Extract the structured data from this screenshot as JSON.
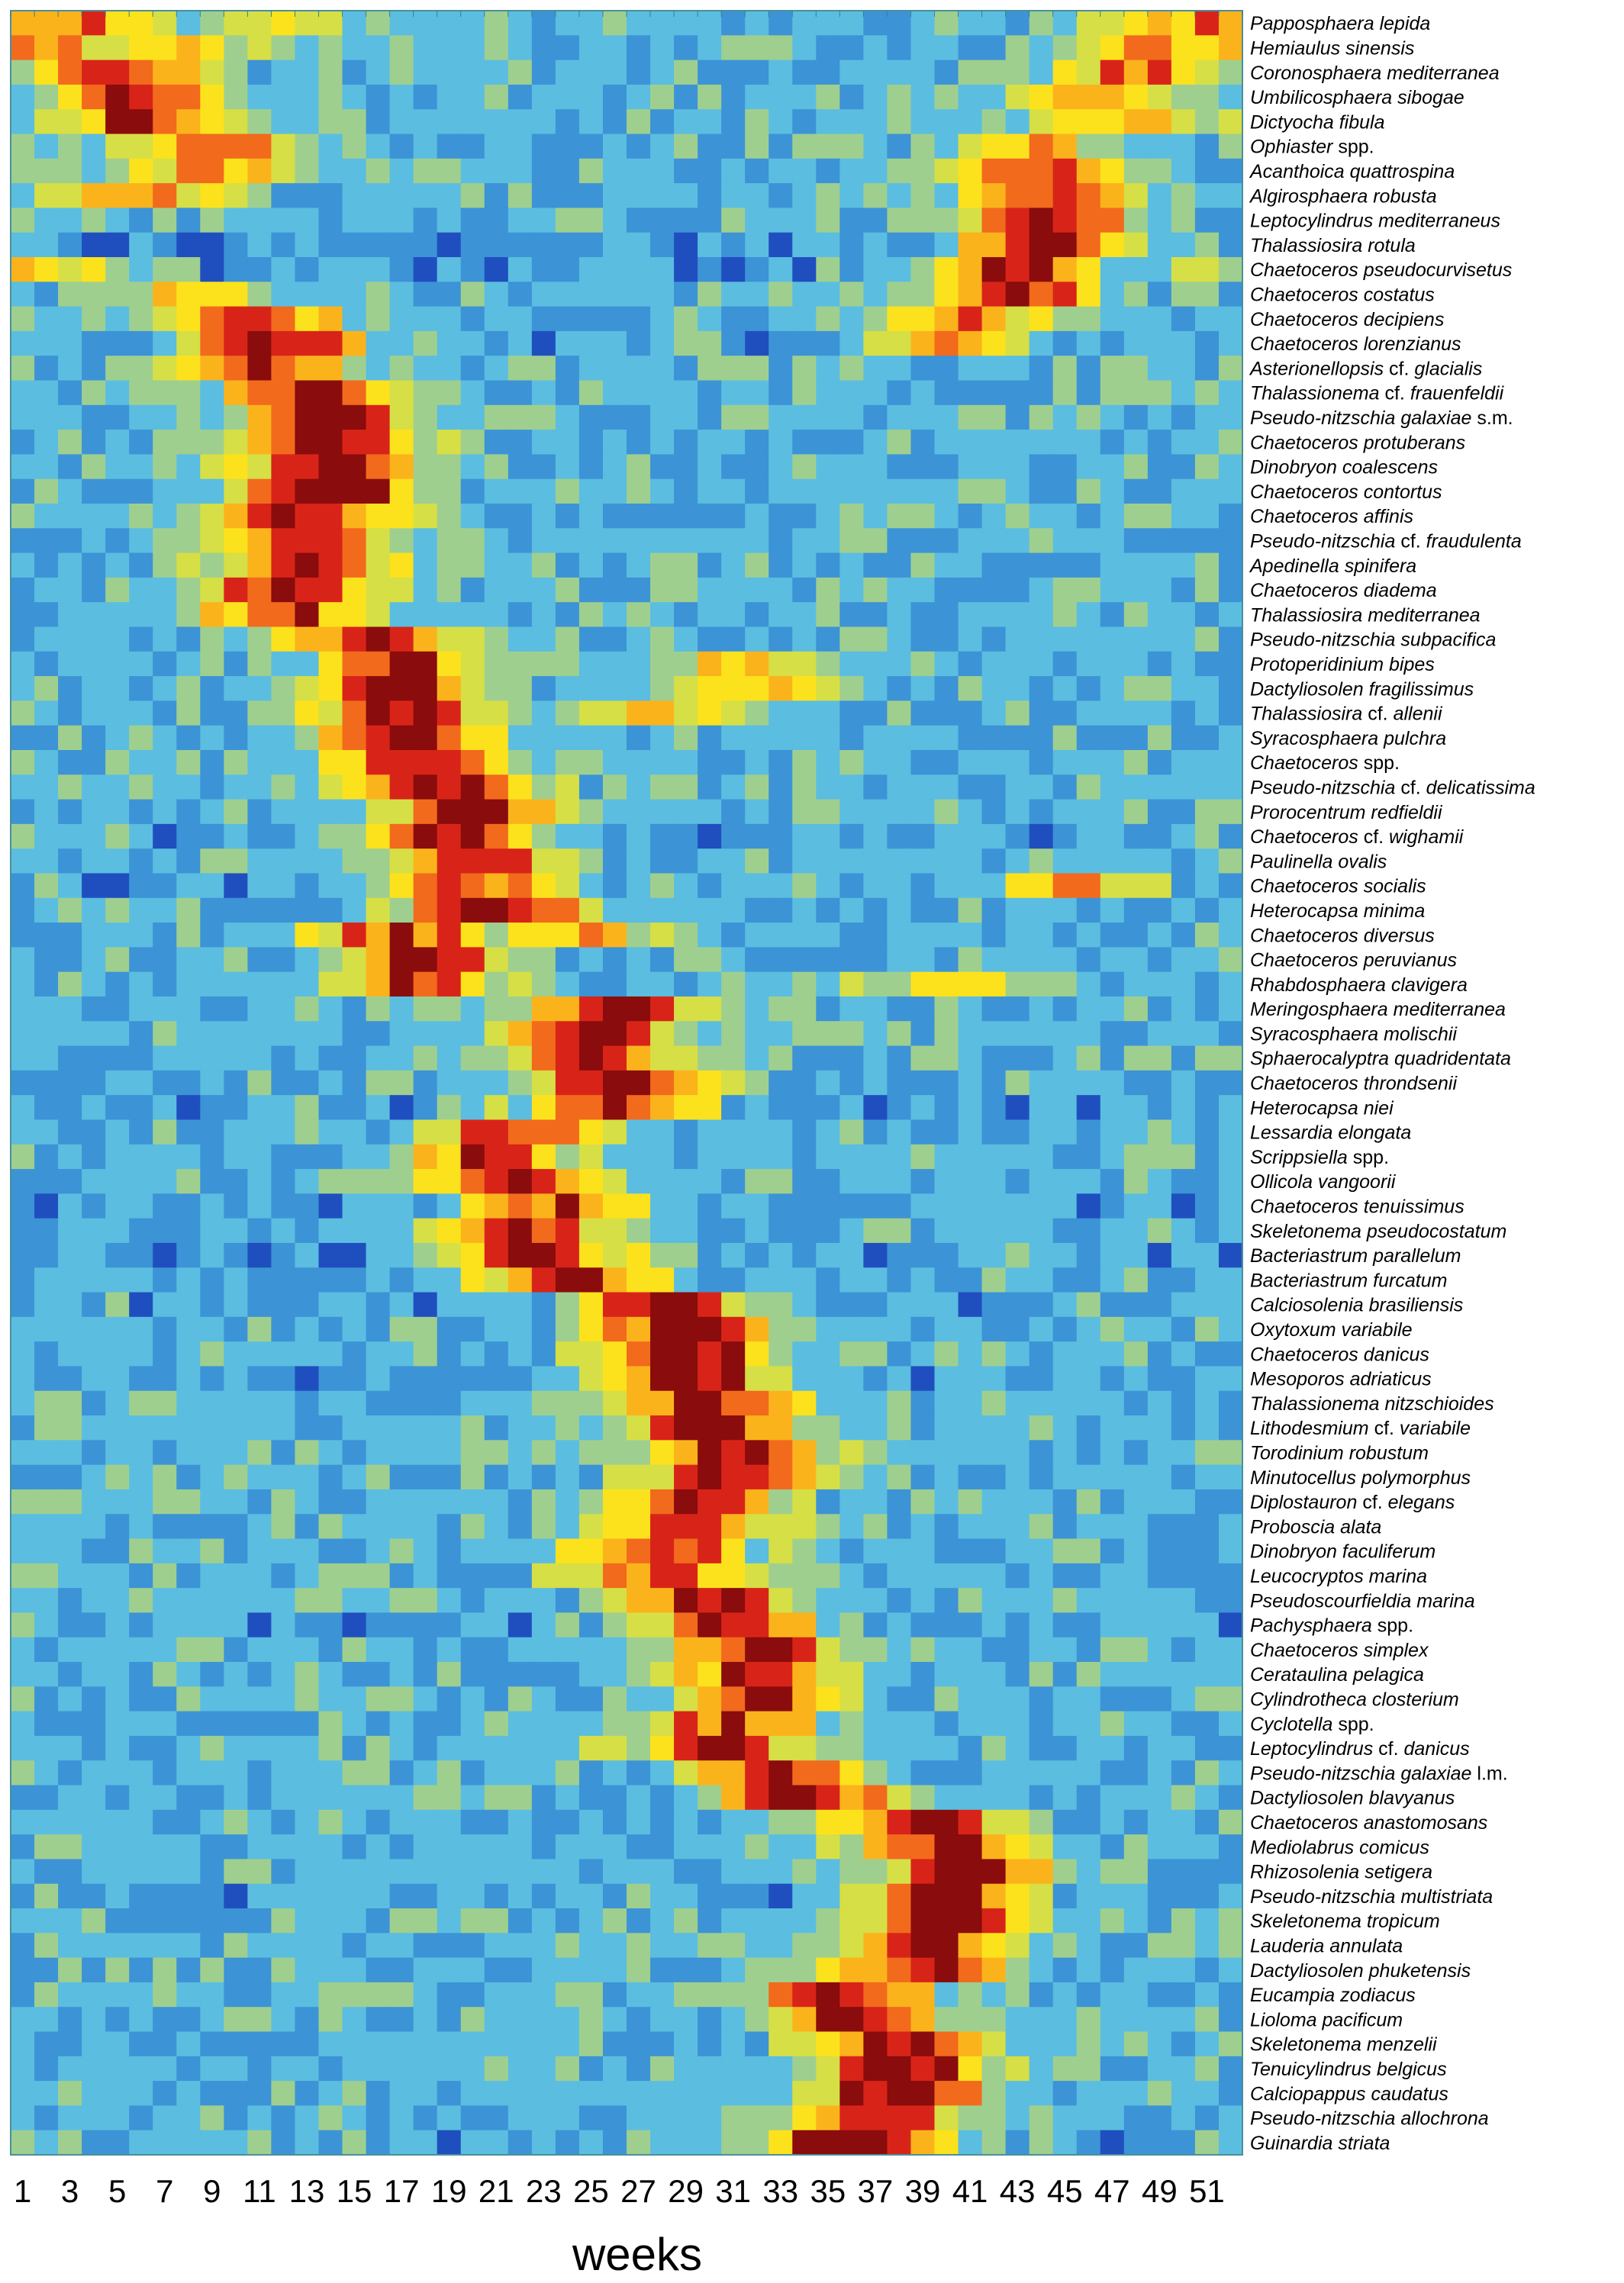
{
  "chart_data": {
    "type": "heatmap",
    "title": "",
    "xlabel": "weeks",
    "ylabel": "",
    "week_count": 52,
    "x_tick_labels": [
      "1",
      "3",
      "5",
      "7",
      "9",
      "11",
      "13",
      "15",
      "17",
      "19",
      "21",
      "23",
      "25",
      "27",
      "29",
      "31",
      "33",
      "35",
      "37",
      "39",
      "41",
      "43",
      "45",
      "47",
      "49",
      "51"
    ],
    "color_scale": [
      "#1f4fbf",
      "#3c93d6",
      "#5bbde0",
      "#9fcf8f",
      "#d6df45",
      "#fce21c",
      "#fbb31c",
      "#f26a1c",
      "#d82418",
      "#8a0c0c"
    ],
    "species": [
      {
        "genus": "Papposphaera",
        "epithet": "lepida",
        "peaks": [
          {
            "w": 3,
            "v": 3.5
          },
          {
            "w": 50,
            "v": 3.2
          },
          {
            "w": 12,
            "v": 2.0
          }
        ]
      },
      {
        "genus": "Hemiaulus",
        "epithet": "sinensis",
        "peaks": [
          {
            "w": 2,
            "v": 3.0
          },
          {
            "w": 49,
            "v": 3.0
          },
          {
            "w": 8,
            "v": 2.0
          }
        ]
      },
      {
        "genus": "Coronosphaera",
        "epithet": "mediterranea",
        "peaks": [
          {
            "w": 5,
            "v": 3.8
          },
          {
            "w": 48,
            "v": 3.3
          }
        ]
      },
      {
        "genus": "Umbilicosphaera",
        "epithet": "sibogae",
        "peaks": [
          {
            "w": 6,
            "v": 4.0
          },
          {
            "w": 46,
            "v": 3.3
          }
        ]
      },
      {
        "genus": "Dictyocha",
        "epithet": "fibula",
        "peaks": [
          {
            "w": 6,
            "v": 3.8
          },
          {
            "w": 48,
            "v": 3.0
          }
        ]
      },
      {
        "genus": "Ophiaster",
        "epithet": "",
        "suffix": "spp.",
        "peaks": [
          {
            "w": 9,
            "v": 3.6
          },
          {
            "w": 44,
            "v": 2.7
          }
        ]
      },
      {
        "genus": "Acanthoica",
        "epithet": "quattrospina",
        "peaks": [
          {
            "w": 9,
            "v": 3.2
          },
          {
            "w": 44,
            "v": 3.6
          }
        ]
      },
      {
        "genus": "Algirosphaera",
        "epithet": "robusta",
        "peaks": [
          {
            "w": 6,
            "v": 3.0
          },
          {
            "w": 44,
            "v": 3.8
          }
        ]
      },
      {
        "genus": "Leptocylindrus",
        "epithet": "mediterraneus",
        "peaks": [
          {
            "w": 44,
            "v": 4.6
          }
        ]
      },
      {
        "genus": "Thalassiosira",
        "epithet": "rotula",
        "peaks": [
          {
            "w": 44,
            "v": 4.5
          }
        ]
      },
      {
        "genus": "Chaetoceros",
        "epithet": "pseudocurvisetus",
        "peaks": [
          {
            "w": 43,
            "v": 4.4
          },
          {
            "w": 2,
            "v": 2.2
          }
        ]
      },
      {
        "genus": "Chaetoceros",
        "epithet": "costatus",
        "peaks": [
          {
            "w": 43,
            "v": 3.8
          },
          {
            "w": 8,
            "v": 2.4
          }
        ]
      },
      {
        "genus": "Chaetoceros",
        "epithet": "decipiens",
        "peaks": [
          {
            "w": 11,
            "v": 3.8
          },
          {
            "w": 41,
            "v": 3.2
          }
        ]
      },
      {
        "genus": "Chaetoceros",
        "epithet": "lorenzianus",
        "peaks": [
          {
            "w": 12,
            "v": 4.5
          },
          {
            "w": 40,
            "v": 2.6
          }
        ]
      },
      {
        "genus": "Asterionellopsis",
        "epithet": "glacialis",
        "qual": "cf.",
        "peaks": [
          {
            "w": 11,
            "v": 4.3
          }
        ]
      },
      {
        "genus": "Thalassionema",
        "epithet": "frauenfeldii",
        "qual": "cf.",
        "peaks": [
          {
            "w": 13,
            "v": 4.2
          }
        ]
      },
      {
        "genus": "Pseudo-nitzschia",
        "epithet": "galaxiae",
        "suffix": "s.m.",
        "peaks": [
          {
            "w": 14,
            "v": 4.6
          }
        ]
      },
      {
        "genus": "Chaetoceros",
        "epithet": "protuberans",
        "peaks": [
          {
            "w": 14,
            "v": 4.6
          }
        ]
      },
      {
        "genus": "Dinobryon",
        "epithet": "coalescens",
        "peaks": [
          {
            "w": 14,
            "v": 4.6
          }
        ]
      },
      {
        "genus": "Chaetoceros",
        "epithet": "contortus",
        "peaks": [
          {
            "w": 14,
            "v": 4.7
          }
        ]
      },
      {
        "genus": "Chaetoceros",
        "epithet": "affinis",
        "peaks": [
          {
            "w": 13,
            "v": 4.5
          }
        ]
      },
      {
        "genus": "Pseudo-nitzschia",
        "epithet": "fraudulenta",
        "qual": "cf.",
        "peaks": [
          {
            "w": 13,
            "v": 4.5
          }
        ]
      },
      {
        "genus": "Apedinella",
        "epithet": "spinifera",
        "peaks": [
          {
            "w": 13,
            "v": 4.4
          }
        ]
      },
      {
        "genus": "Chaetoceros",
        "epithet": "diadema",
        "peaks": [
          {
            "w": 12,
            "v": 4.4
          }
        ]
      },
      {
        "genus": "Thalassiosira",
        "epithet": "mediterranea",
        "peaks": [
          {
            "w": 12,
            "v": 3.8
          }
        ]
      },
      {
        "genus": "Pseudo-nitzschia",
        "epithet": "subpacifica",
        "peaks": [
          {
            "w": 16,
            "v": 4.2
          }
        ]
      },
      {
        "genus": "Protoperidinium",
        "epithet": "bipes",
        "peaks": [
          {
            "w": 17,
            "v": 4.0
          },
          {
            "w": 32,
            "v": 2.6
          }
        ]
      },
      {
        "genus": "Dactyliosolen",
        "epithet": "fragilissimus",
        "peaks": [
          {
            "w": 17,
            "v": 4.2
          },
          {
            "w": 32,
            "v": 2.6
          }
        ]
      },
      {
        "genus": "Thalassiosira",
        "epithet": "allenii",
        "qual": "cf.",
        "peaks": [
          {
            "w": 17,
            "v": 4.2
          },
          {
            "w": 28,
            "v": 2.8
          }
        ]
      },
      {
        "genus": "Syracosphaera",
        "epithet": "pulchra",
        "peaks": [
          {
            "w": 17,
            "v": 4.4
          }
        ]
      },
      {
        "genus": "Chaetoceros",
        "epithet": "",
        "suffix": "spp.",
        "peaks": [
          {
            "w": 18,
            "v": 4.3
          }
        ]
      },
      {
        "genus": "Pseudo-nitzschia",
        "epithet": "delicatissima",
        "qual": "cf.",
        "peaks": [
          {
            "w": 19,
            "v": 4.4
          }
        ]
      },
      {
        "genus": "Prorocentrum",
        "epithet": "redfieldii",
        "peaks": [
          {
            "w": 20,
            "v": 4.5
          }
        ]
      },
      {
        "genus": "Chaetoceros",
        "epithet": "wighamii",
        "qual": "cf.",
        "peaks": [
          {
            "w": 19,
            "v": 4.5
          }
        ]
      },
      {
        "genus": "Paulinella",
        "epithet": "ovalis",
        "peaks": [
          {
            "w": 20,
            "v": 4.2
          }
        ]
      },
      {
        "genus": "Chaetoceros",
        "epithet": "socialis",
        "peaks": [
          {
            "w": 20,
            "v": 3.8
          },
          {
            "w": 45,
            "v": 3.0
          }
        ]
      },
      {
        "genus": "Heterocapsa",
        "epithet": "minima",
        "peaks": [
          {
            "w": 21,
            "v": 4.4
          }
        ]
      },
      {
        "genus": "Chaetoceros",
        "epithet": "diversus",
        "peaks": [
          {
            "w": 17,
            "v": 3.8
          },
          {
            "w": 24,
            "v": 3.0
          }
        ]
      },
      {
        "genus": "Chaetoceros",
        "epithet": "peruvianus",
        "peaks": [
          {
            "w": 18,
            "v": 4.0
          }
        ]
      },
      {
        "genus": "Rhabdosphaera",
        "epithet": "clavigera",
        "peaks": [
          {
            "w": 18,
            "v": 3.6
          },
          {
            "w": 40,
            "v": 2.6
          }
        ]
      },
      {
        "genus": "Meringosphaera",
        "epithet": "mediterranea",
        "peaks": [
          {
            "w": 26,
            "v": 4.2
          }
        ]
      },
      {
        "genus": "Syracosphaera",
        "epithet": "molischii",
        "peaks": [
          {
            "w": 25,
            "v": 4.4
          }
        ]
      },
      {
        "genus": "Sphaerocalyptra",
        "epithet": "quadridentata",
        "peaks": [
          {
            "w": 25,
            "v": 4.5
          }
        ]
      },
      {
        "genus": "Chaetoceros",
        "epithet": "throndsenii",
        "peaks": [
          {
            "w": 26,
            "v": 4.6
          }
        ]
      },
      {
        "genus": "Heterocapsa",
        "epithet": "niei",
        "peaks": [
          {
            "w": 26,
            "v": 4.4
          }
        ]
      },
      {
        "genus": "Lessardia",
        "epithet": "elongata",
        "peaks": [
          {
            "w": 22,
            "v": 4.0
          }
        ]
      },
      {
        "genus": "Scrippsiella",
        "epithet": "",
        "suffix": "spp.",
        "peaks": [
          {
            "w": 21,
            "v": 4.0
          }
        ]
      },
      {
        "genus": "Ollicola",
        "epithet": "vangoorii",
        "peaks": [
          {
            "w": 22,
            "v": 4.0
          }
        ]
      },
      {
        "genus": "Chaetoceros",
        "epithet": "tenuissimus",
        "peaks": [
          {
            "w": 24,
            "v": 4.0
          }
        ]
      },
      {
        "genus": "Skeletonema",
        "epithet": "pseudocostatum",
        "peaks": [
          {
            "w": 22,
            "v": 4.2
          }
        ]
      },
      {
        "genus": "Bacteriastrum",
        "epithet": "parallelum",
        "peaks": [
          {
            "w": 23,
            "v": 4.2
          }
        ]
      },
      {
        "genus": "Bacteriastrum",
        "epithet": "furcatum",
        "peaks": [
          {
            "w": 24,
            "v": 4.0
          }
        ]
      },
      {
        "genus": "Calciosolenia",
        "epithet": "brasiliensis",
        "peaks": [
          {
            "w": 28,
            "v": 4.4
          }
        ]
      },
      {
        "genus": "Oxytoxum",
        "epithet": "variabile",
        "peaks": [
          {
            "w": 29,
            "v": 4.5
          }
        ]
      },
      {
        "genus": "Chaetoceros",
        "epithet": "danicus",
        "peaks": [
          {
            "w": 29,
            "v": 4.6
          }
        ]
      },
      {
        "genus": "Mesoporos",
        "epithet": "adriaticus",
        "peaks": [
          {
            "w": 29,
            "v": 4.5
          }
        ]
      },
      {
        "genus": "Thalassionema",
        "epithet": "nitzschioides",
        "peaks": [
          {
            "w": 30,
            "v": 4.5
          }
        ]
      },
      {
        "genus": "Lithodesmium",
        "epithet": "variabile",
        "qual": "cf.",
        "peaks": [
          {
            "w": 30,
            "v": 4.2
          }
        ]
      },
      {
        "genus": "Torodinium",
        "epithet": "robustum",
        "peaks": [
          {
            "w": 31,
            "v": 4.3
          }
        ]
      },
      {
        "genus": "Minutocellus",
        "epithet": "polymorphus",
        "peaks": [
          {
            "w": 31,
            "v": 4.3
          }
        ]
      },
      {
        "genus": "Diplostauron",
        "epithet": "elegans",
        "qual": "cf.",
        "peaks": [
          {
            "w": 29,
            "v": 4.3
          }
        ]
      },
      {
        "genus": "Proboscia",
        "epithet": "alata",
        "peaks": [
          {
            "w": 29,
            "v": 4.1
          }
        ]
      },
      {
        "genus": "Dinobryon",
        "epithet": "faculiferum",
        "peaks": [
          {
            "w": 28,
            "v": 4.0
          }
        ]
      },
      {
        "genus": "Leucocryptos",
        "epithet": "marina",
        "peaks": [
          {
            "w": 28,
            "v": 4.0
          }
        ]
      },
      {
        "genus": "Pseudoscourfieldia",
        "epithet": "marina",
        "peaks": [
          {
            "w": 30,
            "v": 4.0
          }
        ]
      },
      {
        "genus": "Pachysphaera",
        "epithet": "",
        "suffix": "spp.",
        "peaks": [
          {
            "w": 31,
            "v": 4.2
          }
        ]
      },
      {
        "genus": "Chaetoceros",
        "epithet": "simplex",
        "peaks": [
          {
            "w": 32,
            "v": 4.4
          }
        ]
      },
      {
        "genus": "Cerataulina",
        "epithet": "pelagica",
        "peaks": [
          {
            "w": 32,
            "v": 4.2
          }
        ]
      },
      {
        "genus": "Cylindrotheca",
        "epithet": "closterium",
        "peaks": [
          {
            "w": 32,
            "v": 4.1
          }
        ]
      },
      {
        "genus": "Cyclotella",
        "epithet": "",
        "suffix": "spp.",
        "peaks": [
          {
            "w": 31,
            "v": 4.0
          }
        ]
      },
      {
        "genus": "Leptocylindrus",
        "epithet": "danicus",
        "qual": "cf.",
        "peaks": [
          {
            "w": 30,
            "v": 4.0
          }
        ]
      },
      {
        "genus": "Pseudo-nitzschia",
        "epithet": "galaxiae",
        "suffix": "l.m.",
        "peaks": [
          {
            "w": 33,
            "v": 4.3
          }
        ]
      },
      {
        "genus": "Dactyliosolen",
        "epithet": "blavyanus",
        "peaks": [
          {
            "w": 34,
            "v": 4.5
          }
        ]
      },
      {
        "genus": "Chaetoceros",
        "epithet": "anastomosans",
        "peaks": [
          {
            "w": 39,
            "v": 4.2
          }
        ]
      },
      {
        "genus": "Mediolabrus",
        "epithet": "comicus",
        "peaks": [
          {
            "w": 40,
            "v": 4.3
          }
        ]
      },
      {
        "genus": "Rhizosolenia",
        "epithet": "setigera",
        "peaks": [
          {
            "w": 41,
            "v": 4.3
          }
        ]
      },
      {
        "genus": "Pseudo-nitzschia",
        "epithet": "multistriata",
        "peaks": [
          {
            "w": 40,
            "v": 4.5
          }
        ]
      },
      {
        "genus": "Skeletonema",
        "epithet": "tropicum",
        "peaks": [
          {
            "w": 40,
            "v": 4.6
          }
        ]
      },
      {
        "genus": "Lauderia",
        "epithet": "annulata",
        "peaks": [
          {
            "w": 39,
            "v": 4.5
          }
        ]
      },
      {
        "genus": "Dactyliosolen",
        "epithet": "phuketensis",
        "peaks": [
          {
            "w": 39,
            "v": 4.4
          }
        ]
      },
      {
        "genus": "Eucampia",
        "epithet": "zodiacus",
        "peaks": [
          {
            "w": 36,
            "v": 4.3
          }
        ]
      },
      {
        "genus": "Lioloma",
        "epithet": "pacificum",
        "peaks": [
          {
            "w": 36,
            "v": 4.3
          }
        ]
      },
      {
        "genus": "Skeletonema",
        "epithet": "menzelii",
        "peaks": [
          {
            "w": 38,
            "v": 4.2
          }
        ]
      },
      {
        "genus": "Tenuicylindrus",
        "epithet": "belgicus",
        "peaks": [
          {
            "w": 38,
            "v": 4.5
          }
        ]
      },
      {
        "genus": "Calciopappus",
        "epithet": "caudatus",
        "peaks": [
          {
            "w": 38,
            "v": 4.6
          }
        ]
      },
      {
        "genus": "Pseudo-nitzschia",
        "epithet": "allochrona",
        "peaks": [
          {
            "w": 37,
            "v": 4.4
          }
        ]
      },
      {
        "genus": "Guinardia",
        "epithet": "striata",
        "peaks": [
          {
            "w": 36,
            "v": 4.6
          }
        ]
      }
    ]
  }
}
